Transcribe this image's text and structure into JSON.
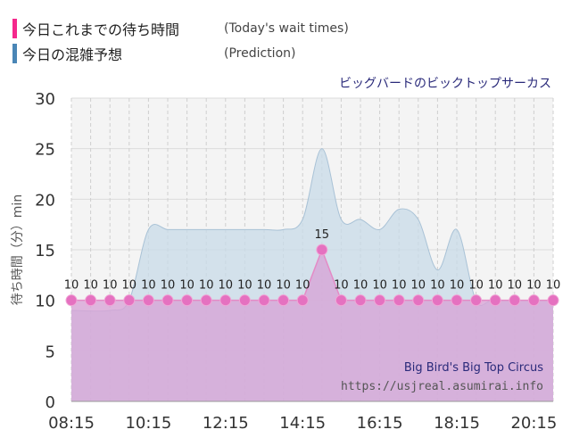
{
  "legend": {
    "actual": {
      "label_ja": "今日これまでの待ち時間",
      "label_en": "(Today's wait times)",
      "color": "#f5288c"
    },
    "prediction": {
      "label_ja": "今日の混雑予想",
      "label_en": "(Prediction)",
      "color": "#4a86b6"
    }
  },
  "chart_data": {
    "type": "area",
    "title": "ビッグバードのビックトップサーカス",
    "ylabel": "待ち時間（分）min",
    "xlabel": "",
    "ylim": [
      0,
      30
    ],
    "yticks": [
      0,
      5,
      10,
      15,
      20,
      25,
      30
    ],
    "xtick_labels": [
      "08:15",
      "10:15",
      "12:15",
      "14:15",
      "16:15",
      "18:15",
      "20:15"
    ],
    "x_range": [
      "08:15",
      "20:45"
    ],
    "grid": true,
    "series": [
      {
        "name": "今日これまでの待ち時間",
        "kind": "actual",
        "color": "#f5288c",
        "points": [
          {
            "t": "08:15",
            "v": 10
          },
          {
            "t": "08:45",
            "v": 10
          },
          {
            "t": "09:15",
            "v": 10
          },
          {
            "t": "09:45",
            "v": 10
          },
          {
            "t": "10:15",
            "v": 10
          },
          {
            "t": "10:45",
            "v": 10
          },
          {
            "t": "11:15",
            "v": 10
          },
          {
            "t": "11:45",
            "v": 10
          },
          {
            "t": "12:15",
            "v": 10
          },
          {
            "t": "12:45",
            "v": 10
          },
          {
            "t": "13:15",
            "v": 10
          },
          {
            "t": "13:45",
            "v": 10
          },
          {
            "t": "14:15",
            "v": 10
          },
          {
            "t": "14:45",
            "v": 15
          },
          {
            "t": "15:15",
            "v": 10
          },
          {
            "t": "15:45",
            "v": 10
          },
          {
            "t": "16:15",
            "v": 10
          },
          {
            "t": "16:45",
            "v": 10
          },
          {
            "t": "17:15",
            "v": 10
          },
          {
            "t": "17:45",
            "v": 10
          },
          {
            "t": "18:15",
            "v": 10
          },
          {
            "t": "18:45",
            "v": 10
          },
          {
            "t": "19:15",
            "v": 10
          },
          {
            "t": "19:45",
            "v": 10
          },
          {
            "t": "20:15",
            "v": 10
          },
          {
            "t": "20:45",
            "v": 10
          }
        ]
      },
      {
        "name": "今日の混雑予想",
        "kind": "prediction",
        "color": "#4a86b6",
        "points": [
          {
            "t": "08:15",
            "v": 9
          },
          {
            "t": "09:15",
            "v": 9
          },
          {
            "t": "09:45",
            "v": 10
          },
          {
            "t": "10:15",
            "v": 17
          },
          {
            "t": "10:45",
            "v": 17
          },
          {
            "t": "11:15",
            "v": 17
          },
          {
            "t": "12:15",
            "v": 17
          },
          {
            "t": "13:15",
            "v": 17
          },
          {
            "t": "13:45",
            "v": 17
          },
          {
            "t": "14:15",
            "v": 18
          },
          {
            "t": "14:45",
            "v": 25
          },
          {
            "t": "15:15",
            "v": 18
          },
          {
            "t": "15:45",
            "v": 18
          },
          {
            "t": "16:15",
            "v": 17
          },
          {
            "t": "16:45",
            "v": 19
          },
          {
            "t": "17:15",
            "v": 18
          },
          {
            "t": "17:45",
            "v": 13
          },
          {
            "t": "18:15",
            "v": 17
          },
          {
            "t": "18:45",
            "v": 10
          },
          {
            "t": "19:15",
            "v": 10
          },
          {
            "t": "20:45",
            "v": 10
          }
        ]
      }
    ]
  },
  "watermark": {
    "name_en": "Big Bird's Big Top Circus",
    "url": "https://usjreal.asumirai.info"
  }
}
